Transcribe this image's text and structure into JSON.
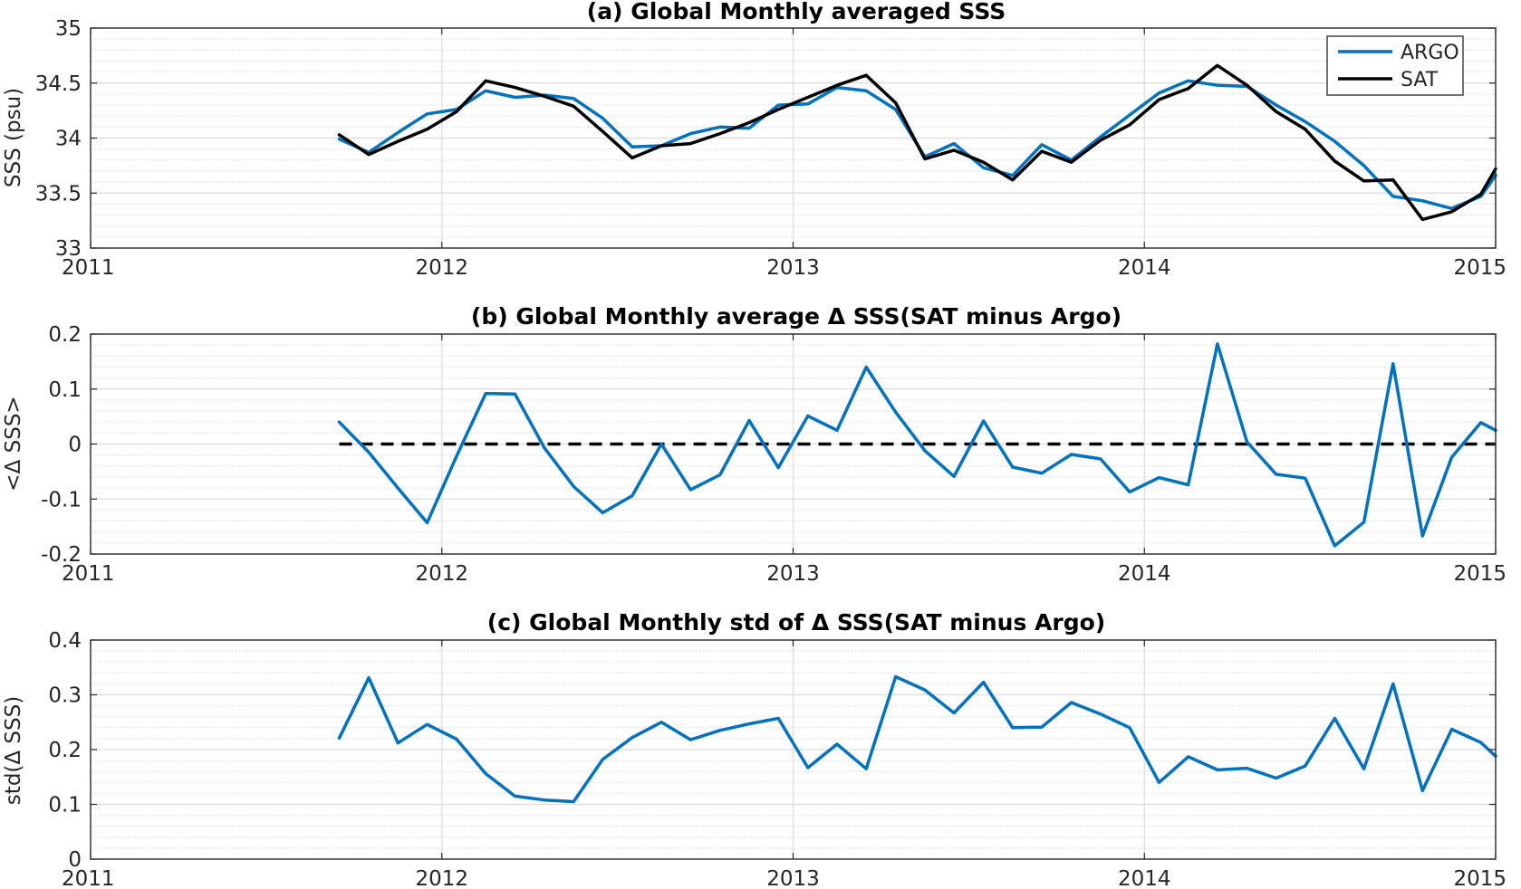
{
  "chart_data": [
    {
      "type": "line",
      "title": "(a) Global Monthly averaged SSS",
      "xlabel": "",
      "ylabel": "SSS (psu)",
      "xlim": [
        2011,
        2015
      ],
      "ylim": [
        33,
        35
      ],
      "xticks": [
        2011,
        2012,
        2013,
        2014,
        2015
      ],
      "xtick_labels": [
        "2011",
        "2012",
        "2013",
        "2014",
        "2015"
      ],
      "yticks": [
        33,
        33.5,
        34,
        34.5,
        35
      ],
      "ytick_labels": [
        "33",
        "33.5",
        "34",
        "34.5",
        "35"
      ],
      "grid": true,
      "minor_grid": true,
      "legend_position": "top-right",
      "x": [
        2011.708,
        2011.792,
        2011.875,
        2011.958,
        2012.042,
        2012.125,
        2012.208,
        2012.292,
        2012.375,
        2012.458,
        2012.542,
        2012.625,
        2012.708,
        2012.792,
        2012.875,
        2012.958,
        2013.042,
        2013.125,
        2013.208,
        2013.292,
        2013.375,
        2013.458,
        2013.542,
        2013.625,
        2013.708,
        2013.792,
        2013.875,
        2013.958,
        2014.042,
        2014.125,
        2014.208,
        2014.292,
        2014.375,
        2014.458,
        2014.542,
        2014.625,
        2014.708,
        2014.792,
        2014.875,
        2014.958,
        2015.0
      ],
      "series": [
        {
          "name": "ARGO",
          "color": "#0072BD",
          "values": [
            33.99,
            33.87,
            34.05,
            34.22,
            34.26,
            34.43,
            34.37,
            34.39,
            34.36,
            34.18,
            33.92,
            33.93,
            34.04,
            34.1,
            34.09,
            34.3,
            34.31,
            34.46,
            34.43,
            34.26,
            33.83,
            33.95,
            33.73,
            33.66,
            33.94,
            33.8,
            34.01,
            34.21,
            34.41,
            34.52,
            34.48,
            34.47,
            34.3,
            34.15,
            33.97,
            33.75,
            33.47,
            33.43,
            33.36,
            33.47,
            33.66
          ]
        },
        {
          "name": "SAT",
          "color": "#000000",
          "values": [
            34.03,
            33.85,
            33.97,
            34.08,
            34.24,
            34.52,
            34.46,
            34.38,
            34.29,
            34.06,
            33.82,
            33.93,
            33.95,
            34.04,
            34.14,
            34.26,
            34.37,
            34.48,
            34.57,
            34.32,
            33.81,
            33.89,
            33.78,
            33.62,
            33.88,
            33.78,
            33.98,
            34.12,
            34.35,
            34.45,
            34.66,
            34.48,
            34.24,
            34.08,
            33.79,
            33.61,
            33.62,
            33.26,
            33.33,
            33.49,
            33.72
          ]
        }
      ]
    },
    {
      "type": "line",
      "title": "(b) Global Monthly average Δ SSS(SAT minus Argo)",
      "xlabel": "",
      "ylabel": "<Δ SSS>",
      "xlim": [
        2011,
        2015
      ],
      "ylim": [
        -0.2,
        0.2
      ],
      "xticks": [
        2011,
        2012,
        2013,
        2014,
        2015
      ],
      "xtick_labels": [
        "2011",
        "2012",
        "2013",
        "2014",
        "2015"
      ],
      "yticks": [
        -0.2,
        -0.1,
        0,
        0.1,
        0.2
      ],
      "ytick_labels": [
        "-0.2",
        "-0.1",
        "0",
        "0.1",
        "0.2"
      ],
      "grid": true,
      "minor_grid": true,
      "reference_line": {
        "y": 0,
        "x_start": 2011.708,
        "x_end": 2015.0,
        "style": "dashed",
        "color": "#000000"
      },
      "x": [
        2011.708,
        2011.792,
        2011.875,
        2011.958,
        2012.042,
        2012.125,
        2012.208,
        2012.292,
        2012.375,
        2012.458,
        2012.542,
        2012.625,
        2012.708,
        2012.792,
        2012.875,
        2012.958,
        2013.042,
        2013.125,
        2013.208,
        2013.292,
        2013.375,
        2013.458,
        2013.542,
        2013.625,
        2013.708,
        2013.792,
        2013.875,
        2013.958,
        2014.042,
        2014.125,
        2014.208,
        2014.292,
        2014.375,
        2014.458,
        2014.542,
        2014.625,
        2014.708,
        2014.792,
        2014.875,
        2014.958,
        2015.0
      ],
      "series": [
        {
          "color": "#0072BD",
          "values": [
            0.04,
            -0.015,
            -0.08,
            -0.143,
            -0.022,
            0.092,
            0.091,
            -0.007,
            -0.077,
            -0.125,
            -0.094,
            0.0,
            -0.083,
            -0.056,
            0.043,
            -0.043,
            0.051,
            0.025,
            0.14,
            0.058,
            -0.012,
            -0.059,
            0.042,
            -0.042,
            -0.053,
            -0.019,
            -0.027,
            -0.087,
            -0.061,
            -0.074,
            0.182,
            0.004,
            -0.055,
            -0.062,
            -0.185,
            -0.142,
            0.146,
            -0.167,
            -0.024,
            0.039,
            0.025
          ]
        }
      ]
    },
    {
      "type": "line",
      "title": "(c) Global Monthly std of Δ SSS(SAT minus Argo)",
      "xlabel": "",
      "ylabel": "std(Δ SSS)",
      "xlim": [
        2011,
        2015
      ],
      "ylim": [
        0,
        0.4
      ],
      "xticks": [
        2011,
        2012,
        2013,
        2014,
        2015
      ],
      "xtick_labels": [
        "2011",
        "2012",
        "2013",
        "2014",
        "2015"
      ],
      "yticks": [
        0,
        0.1,
        0.2,
        0.3,
        0.4
      ],
      "ytick_labels": [
        "0",
        "0.1",
        "0.2",
        "0.3",
        "0.4"
      ],
      "grid": true,
      "minor_grid": true,
      "x": [
        2011.708,
        2011.792,
        2011.875,
        2011.958,
        2012.042,
        2012.125,
        2012.208,
        2012.292,
        2012.375,
        2012.458,
        2012.542,
        2012.625,
        2012.708,
        2012.792,
        2012.875,
        2012.958,
        2013.042,
        2013.125,
        2013.208,
        2013.292,
        2013.375,
        2013.458,
        2013.542,
        2013.625,
        2013.708,
        2013.792,
        2013.875,
        2013.958,
        2014.042,
        2014.125,
        2014.208,
        2014.292,
        2014.375,
        2014.458,
        2014.542,
        2014.625,
        2014.708,
        2014.792,
        2014.875,
        2014.958,
        2015.0
      ],
      "series": [
        {
          "color": "#0072BD",
          "values": [
            0.221,
            0.331,
            0.212,
            0.246,
            0.219,
            0.156,
            0.115,
            0.108,
            0.105,
            0.182,
            0.222,
            0.25,
            0.218,
            0.235,
            0.247,
            0.257,
            0.167,
            0.21,
            0.165,
            0.333,
            0.309,
            0.267,
            0.323,
            0.24,
            0.241,
            0.286,
            0.265,
            0.24,
            0.14,
            0.187,
            0.163,
            0.166,
            0.148,
            0.17,
            0.257,
            0.165,
            0.32,
            0.125,
            0.237,
            0.213,
            0.188
          ]
        }
      ]
    }
  ]
}
